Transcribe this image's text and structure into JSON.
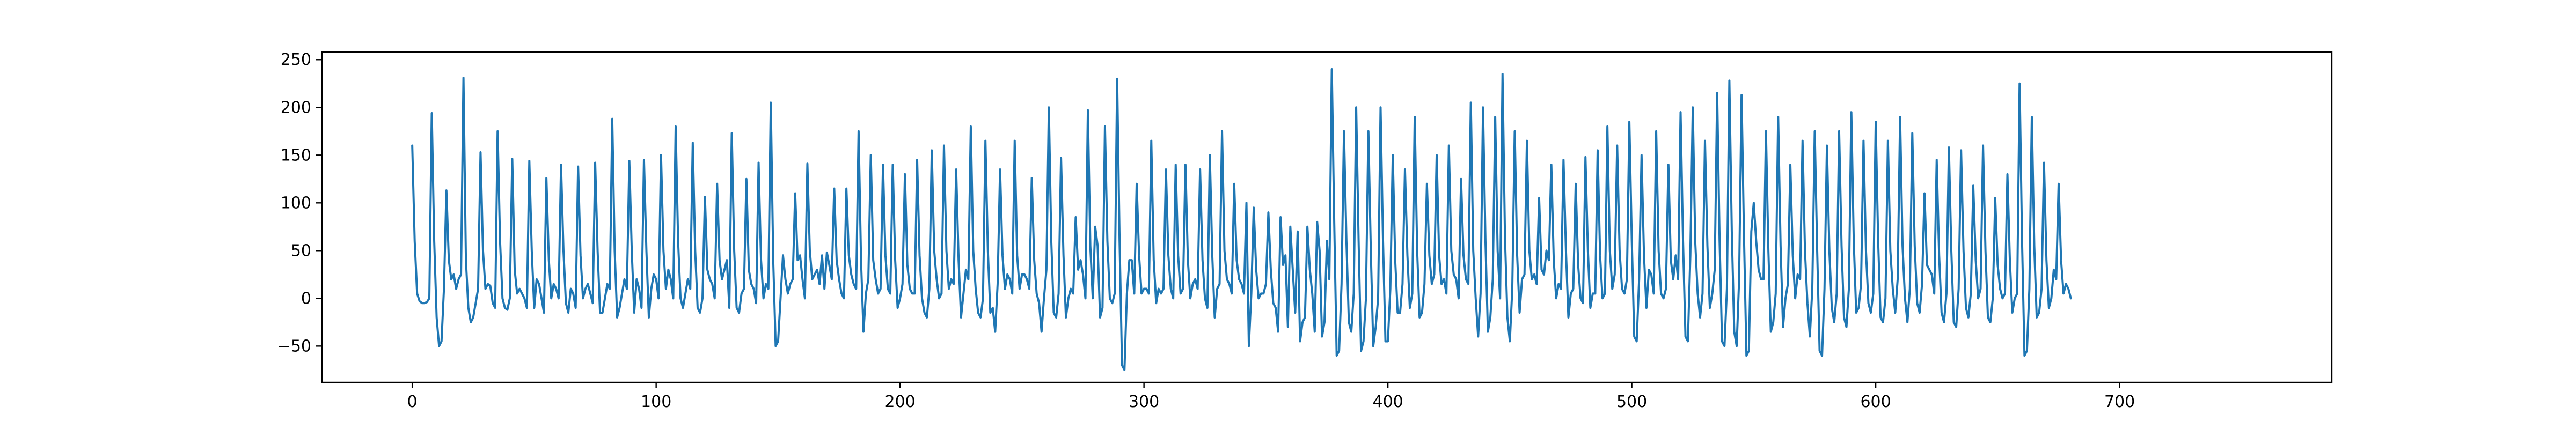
{
  "chart_data": {
    "type": "line",
    "title": "",
    "xlabel": "",
    "ylabel": "",
    "xlim": [
      -37,
      787
    ],
    "ylim": [
      -88,
      258
    ],
    "x_ticks": [
      0,
      100,
      200,
      300,
      400,
      500,
      600,
      700
    ],
    "y_ticks": [
      -50,
      0,
      50,
      100,
      150,
      200,
      250
    ],
    "grid": false,
    "legend": "none",
    "colors": {
      "line": "#1f77b4",
      "axes": "#000000",
      "background": "#ffffff"
    },
    "series": [
      {
        "x_start": 0,
        "x_step": 1,
        "values": [
          160,
          60,
          5,
          -3,
          -5,
          -5,
          -4,
          0,
          194,
          60,
          -20,
          -50,
          -45,
          10,
          113,
          40,
          20,
          25,
          10,
          20,
          25,
          231,
          40,
          -10,
          -25,
          -20,
          -5,
          10,
          153,
          50,
          10,
          15,
          13,
          -5,
          -10,
          175,
          60,
          0,
          -10,
          -12,
          0,
          146,
          30,
          5,
          10,
          5,
          0,
          -10,
          144,
          50,
          -10,
          20,
          15,
          0,
          -15,
          126,
          40,
          0,
          15,
          10,
          0,
          140,
          50,
          -5,
          -15,
          10,
          5,
          -10,
          138,
          45,
          0,
          10,
          15,
          5,
          -5,
          142,
          50,
          -15,
          -15,
          0,
          15,
          10,
          188,
          50,
          -20,
          -10,
          5,
          20,
          10,
          144,
          50,
          -15,
          20,
          10,
          -10,
          145,
          50,
          -20,
          10,
          25,
          20,
          0,
          150,
          50,
          10,
          30,
          20,
          0,
          180,
          60,
          0,
          -10,
          5,
          20,
          10,
          163,
          50,
          -10,
          -15,
          0,
          106,
          30,
          20,
          15,
          0,
          120,
          40,
          20,
          30,
          40,
          -10,
          173,
          50,
          -10,
          -15,
          5,
          10,
          125,
          30,
          15,
          10,
          -5,
          142,
          40,
          0,
          15,
          10,
          205,
          40,
          -50,
          -45,
          0,
          45,
          20,
          5,
          15,
          20,
          110,
          40,
          45,
          20,
          0,
          141,
          50,
          20,
          25,
          30,
          15,
          45,
          10,
          48,
          35,
          20,
          115,
          40,
          20,
          5,
          0,
          115,
          45,
          25,
          15,
          10,
          175,
          40,
          -35,
          5,
          20,
          150,
          40,
          20,
          5,
          10,
          140,
          45,
          10,
          5,
          140,
          40,
          -10,
          0,
          15,
          130,
          35,
          10,
          5,
          5,
          145,
          45,
          0,
          -15,
          -20,
          10,
          155,
          50,
          20,
          0,
          5,
          160,
          50,
          10,
          20,
          15,
          135,
          40,
          -20,
          5,
          30,
          20,
          180,
          50,
          10,
          -15,
          -20,
          0,
          165,
          50,
          -15,
          -10,
          -35,
          15,
          135,
          45,
          10,
          25,
          20,
          5,
          165,
          45,
          10,
          25,
          25,
          20,
          10,
          126,
          40,
          5,
          -5,
          -35,
          0,
          30,
          200,
          60,
          -15,
          -20,
          5,
          147,
          45,
          -20,
          0,
          10,
          5,
          85,
          30,
          40,
          25,
          0,
          197,
          55,
          0,
          75,
          55,
          -20,
          -10,
          180,
          60,
          0,
          -5,
          5,
          230,
          60,
          -70,
          -75,
          5,
          40,
          40,
          5,
          120,
          45,
          5,
          10,
          10,
          5,
          165,
          40,
          -5,
          10,
          5,
          10,
          135,
          45,
          10,
          0,
          140,
          45,
          5,
          10,
          140,
          40,
          0,
          15,
          20,
          10,
          135,
          40,
          0,
          -10,
          150,
          45,
          -20,
          10,
          15,
          175,
          50,
          20,
          15,
          5,
          120,
          40,
          20,
          15,
          5,
          100,
          -50,
          5,
          95,
          30,
          0,
          5,
          5,
          15,
          90,
          30,
          -5,
          -10,
          -35,
          85,
          35,
          45,
          -30,
          75,
          30,
          -15,
          70,
          -45,
          -25,
          -20,
          75,
          30,
          5,
          -35,
          80,
          50,
          -40,
          -25,
          60,
          20,
          240,
          80,
          -60,
          -55,
          15,
          175,
          60,
          -25,
          -35,
          5,
          200,
          60,
          -55,
          -45,
          0,
          175,
          50,
          -50,
          -30,
          0,
          200,
          60,
          -45,
          -45,
          10,
          150,
          40,
          -15,
          -15,
          15,
          135,
          45,
          -10,
          5,
          190,
          50,
          -20,
          -15,
          15,
          120,
          45,
          15,
          25,
          150,
          45,
          15,
          20,
          5,
          160,
          50,
          25,
          20,
          0,
          125,
          45,
          20,
          15,
          205,
          50,
          0,
          -40,
          5,
          200,
          60,
          -35,
          -20,
          20,
          190,
          50,
          0,
          235,
          65,
          -20,
          -45,
          10,
          175,
          45,
          -15,
          20,
          25,
          165,
          50,
          20,
          25,
          15,
          105,
          30,
          25,
          50,
          40,
          140,
          40,
          0,
          15,
          10,
          145,
          50,
          -20,
          5,
          10,
          120,
          35,
          0,
          -5,
          148,
          50,
          -10,
          5,
          5,
          155,
          45,
          0,
          5,
          180,
          50,
          10,
          25,
          160,
          50,
          10,
          5,
          20,
          185,
          60,
          -40,
          -45,
          20,
          150,
          45,
          -10,
          30,
          25,
          5,
          175,
          50,
          5,
          0,
          10,
          140,
          40,
          20,
          45,
          20,
          195,
          60,
          -40,
          -45,
          45,
          200,
          60,
          5,
          -20,
          5,
          165,
          55,
          -10,
          5,
          30,
          215,
          60,
          -45,
          -50,
          10,
          228,
          70,
          -35,
          -50,
          20,
          213,
          65,
          -60,
          -55,
          70,
          100,
          60,
          30,
          20,
          20,
          175,
          50,
          -35,
          -25,
          5,
          190,
          55,
          -30,
          0,
          15,
          140,
          45,
          0,
          25,
          20,
          165,
          50,
          -5,
          -40,
          10,
          175,
          50,
          -55,
          -60,
          10,
          160,
          50,
          -10,
          -25,
          5,
          175,
          55,
          -20,
          -30,
          10,
          195,
          60,
          -15,
          -10,
          15,
          165,
          50,
          -5,
          -15,
          5,
          185,
          60,
          -20,
          -25,
          0,
          165,
          50,
          10,
          -15,
          20,
          190,
          55,
          0,
          -25,
          10,
          173,
          55,
          -5,
          -15,
          15,
          110,
          35,
          30,
          25,
          5,
          145,
          45,
          -15,
          -25,
          5,
          158,
          50,
          -25,
          -30,
          10,
          155,
          50,
          -10,
          -20,
          5,
          118,
          40,
          0,
          10,
          160,
          50,
          -20,
          -25,
          0,
          105,
          35,
          10,
          0,
          5,
          130,
          40,
          -15,
          0,
          5,
          225,
          60,
          -60,
          -55,
          10,
          190,
          55,
          -20,
          -15,
          10,
          142,
          40,
          -10,
          0,
          30,
          20,
          120,
          40,
          5,
          15,
          10,
          0
        ]
      }
    ]
  }
}
